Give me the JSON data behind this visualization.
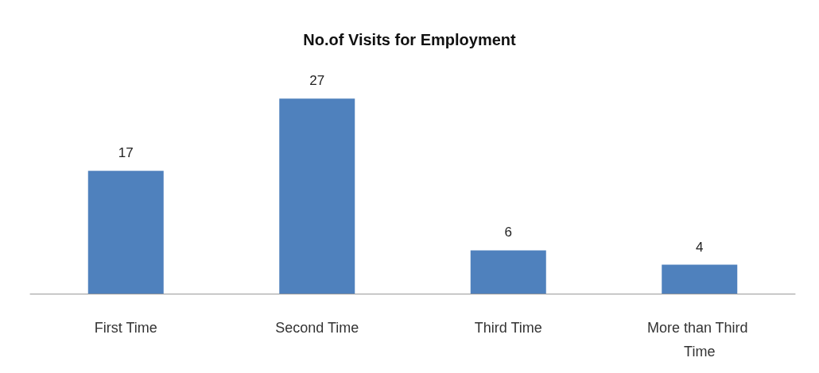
{
  "chart_data": {
    "type": "bar",
    "title": "No.of Visits for Employment",
    "categories": [
      "First Time",
      "Second Time",
      "Third Time",
      "More than Third Time"
    ],
    "values": [
      17,
      27,
      6,
      4
    ],
    "color": "#4f81bd",
    "data_labels": true
  }
}
